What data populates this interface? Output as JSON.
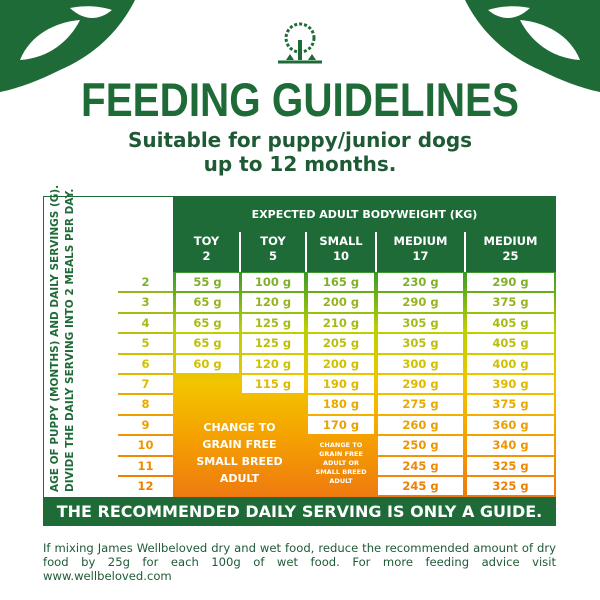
{
  "header": {
    "title": "FEEDING GUIDELINES",
    "subtitle_line1": "Suitable for puppy/junior dogs",
    "subtitle_line2": "up to 12 months.",
    "brand_color": "#1e6b38"
  },
  "table": {
    "side_label_line1": "AGE OF PUPPY (MONTHS) AND DAILY SERVINGS (G).",
    "side_label_line2": "DIVIDE THE DAILY SERVING INTO 2 MEALS PER DAY.",
    "header_title": "EXPECTED ADULT BODYWEIGHT (KG)",
    "columns": [
      {
        "size": "TOY",
        "weight": "2"
      },
      {
        "size": "TOY",
        "weight": "5"
      },
      {
        "size": "SMALL",
        "weight": "10"
      },
      {
        "size": "MEDIUM",
        "weight": "17"
      },
      {
        "size": "MEDIUM",
        "weight": "25"
      }
    ],
    "rows": [
      {
        "age": "2",
        "values": [
          "55 g",
          "100 g",
          "165 g",
          "230 g",
          "290 g"
        ]
      },
      {
        "age": "3",
        "values": [
          "65 g",
          "120 g",
          "200 g",
          "290 g",
          "375 g"
        ]
      },
      {
        "age": "4",
        "values": [
          "65 g",
          "125 g",
          "210 g",
          "305 g",
          "405 g"
        ]
      },
      {
        "age": "5",
        "values": [
          "65 g",
          "125 g",
          "205 g",
          "305 g",
          "405 g"
        ]
      },
      {
        "age": "6",
        "values": [
          "60 g",
          "120 g",
          "200 g",
          "300 g",
          "400 g"
        ]
      },
      {
        "age": "7",
        "values": [
          null,
          "115 g",
          "190 g",
          "290 g",
          "390 g"
        ]
      },
      {
        "age": "8",
        "values": [
          null,
          null,
          "180 g",
          "275 g",
          "375 g"
        ]
      },
      {
        "age": "9",
        "values": [
          null,
          null,
          "170 g",
          "260 g",
          "360 g"
        ]
      },
      {
        "age": "10",
        "values": [
          null,
          null,
          null,
          "250 g",
          "340 g"
        ]
      },
      {
        "age": "11",
        "values": [
          null,
          null,
          null,
          "245 g",
          "325 g"
        ]
      },
      {
        "age": "12",
        "values": [
          null,
          null,
          null,
          "245 g",
          "325 g"
        ]
      }
    ],
    "change_notice_small_breed": [
      "CHANGE TO",
      "GRAIN FREE",
      "SMALL BREED",
      "ADULT"
    ],
    "change_notice_adult": [
      "CHANGE TO",
      "GRAIN FREE",
      "ADULT OR",
      "SMALL BREED",
      "ADULT"
    ],
    "footer": "THE RECOMMENDED DAILY SERVING IS ONLY A GUIDE."
  },
  "note": "If mixing James Wellbeloved dry and wet food, reduce the recommended amount of dry food by 25g for each 100g of wet food. For more feeding advice visit www.wellbeloved.com"
}
